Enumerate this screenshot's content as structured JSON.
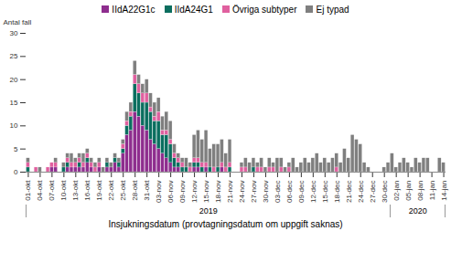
{
  "chart_data": {
    "type": "bar",
    "stacked": true,
    "legend": "top",
    "grid": false,
    "ylabel": "Antal fall",
    "xlabel": "Insjukningsdatum (provtagningsdatum om uppgift saknas)",
    "ylim": [
      0,
      30
    ],
    "yticks": [
      0,
      5,
      10,
      15,
      20,
      25,
      30
    ],
    "year_groups": [
      {
        "label": "2019",
        "count": 92
      },
      {
        "label": "2020",
        "count": 14
      }
    ],
    "categories": [
      "01-okt",
      null,
      null,
      "04-okt",
      null,
      null,
      "07-okt",
      null,
      null,
      "10-okt",
      null,
      null,
      "13-okt",
      null,
      null,
      "16-okt",
      null,
      null,
      "19-okt",
      null,
      null,
      "22-okt",
      null,
      null,
      "25-okt",
      null,
      null,
      "28-okt",
      null,
      null,
      "31-okt",
      null,
      null,
      "03-nov",
      null,
      null,
      "06-nov",
      null,
      null,
      "09-nov",
      null,
      null,
      "12-nov",
      null,
      null,
      "15-nov",
      null,
      null,
      "18-nov",
      null,
      null,
      "21-nov",
      null,
      null,
      "24-nov",
      null,
      null,
      "27-nov",
      null,
      null,
      "30-nov",
      null,
      null,
      "03-dec",
      null,
      null,
      "06-dec",
      null,
      null,
      "09-dec",
      null,
      null,
      "12-dec",
      null,
      null,
      "15-dec",
      null,
      null,
      "18-dec",
      null,
      null,
      "21-dec",
      null,
      null,
      "24-dec",
      null,
      null,
      "27-dec",
      null,
      null,
      "30-dec",
      null,
      null,
      "02-jan",
      null,
      null,
      "05-jan",
      null,
      null,
      "08-jan",
      null,
      null,
      "11-jan",
      null,
      null,
      "14-jan"
    ],
    "series": [
      {
        "name": "IIdA22G1c",
        "color": "#8E2D8E",
        "values": [
          0,
          0,
          0,
          0,
          0,
          0,
          1,
          1,
          0,
          0,
          1,
          1,
          1,
          1,
          1,
          2,
          1,
          0,
          1,
          0,
          1,
          1,
          2,
          1,
          4,
          8,
          9,
          13,
          12,
          10,
          9,
          7,
          6,
          5,
          4,
          3,
          2,
          1,
          1,
          0,
          0,
          0,
          1,
          1,
          0,
          1,
          0,
          0,
          0,
          1,
          0,
          0,
          0,
          0,
          0,
          0,
          0,
          0,
          0,
          0,
          0,
          0,
          0,
          0,
          0,
          0,
          0,
          0,
          0,
          0,
          0,
          0,
          0,
          0,
          0,
          0,
          0,
          0,
          0,
          0,
          0,
          0,
          0,
          0,
          0,
          0,
          0,
          0,
          0,
          0,
          0,
          0,
          0,
          0,
          0,
          0,
          0,
          0,
          0,
          0,
          0,
          0,
          0,
          0,
          0,
          0
        ]
      },
      {
        "name": "IIdA24G1",
        "color": "#0B6E5F",
        "values": [
          1,
          0,
          0,
          0,
          0,
          0,
          0,
          0,
          0,
          1,
          1,
          0,
          0,
          1,
          0,
          1,
          0,
          0,
          0,
          0,
          1,
          0,
          1,
          1,
          1,
          2,
          3,
          6,
          5,
          5,
          6,
          6,
          5,
          6,
          4,
          5,
          4,
          2,
          1,
          1,
          1,
          0,
          1,
          1,
          1,
          0,
          1,
          0,
          1,
          0,
          0,
          1,
          0,
          0,
          0,
          0,
          0,
          1,
          0,
          0,
          0,
          0,
          0,
          0,
          0,
          0,
          0,
          0,
          0,
          0,
          0,
          0,
          0,
          0,
          0,
          0,
          0,
          0,
          0,
          0,
          0,
          0,
          0,
          0,
          0,
          0,
          0,
          0,
          0,
          0,
          0,
          0,
          0,
          0,
          0,
          0,
          0,
          0,
          0,
          0,
          0,
          0,
          0,
          0,
          0,
          0
        ]
      },
      {
        "name": "Övriga subtyper",
        "color": "#E0609F",
        "values": [
          1,
          0,
          1,
          0,
          0,
          1,
          1,
          1,
          0,
          0,
          1,
          1,
          1,
          1,
          1,
          1,
          1,
          1,
          1,
          0,
          0,
          0,
          0,
          0,
          1,
          1,
          1,
          2,
          2,
          2,
          2,
          1,
          1,
          2,
          1,
          1,
          1,
          1,
          1,
          1,
          0,
          1,
          1,
          1,
          1,
          1,
          0,
          1,
          0,
          1,
          1,
          1,
          0,
          0,
          1,
          1,
          0,
          0,
          1,
          1,
          0,
          1,
          1,
          0,
          1,
          0,
          1,
          0,
          0,
          0,
          0,
          0,
          0,
          0,
          0,
          0,
          0,
          0,
          1,
          0,
          0,
          0,
          0,
          0,
          0,
          0,
          0,
          0,
          0,
          0,
          0,
          0,
          0,
          0,
          0,
          0,
          0,
          0,
          0,
          0,
          0,
          0,
          0,
          0,
          0,
          0
        ]
      },
      {
        "name": "Ej typad",
        "color": "#7F7F7F",
        "values": [
          1,
          0,
          0,
          1,
          0,
          0,
          0,
          1,
          0,
          1,
          1,
          2,
          1,
          1,
          2,
          1,
          1,
          1,
          1,
          1,
          1,
          1,
          1,
          1,
          1,
          2,
          2,
          3,
          2,
          2,
          3,
          3,
          3,
          3,
          3,
          4,
          4,
          2,
          1,
          1,
          2,
          1,
          5,
          6,
          5,
          7,
          4,
          5,
          5,
          5,
          3,
          5,
          0,
          0,
          1,
          2,
          2,
          2,
          1,
          2,
          1,
          2,
          1,
          3,
          2,
          1,
          1,
          3,
          1,
          2,
          3,
          2,
          3,
          4,
          2,
          3,
          2,
          3,
          3,
          2,
          5,
          3,
          8,
          7,
          6,
          2,
          1,
          0,
          0,
          0,
          1,
          2,
          4,
          1,
          2,
          3,
          2,
          1,
          3,
          2,
          3,
          3,
          0,
          0,
          3,
          2
        ]
      }
    ]
  }
}
